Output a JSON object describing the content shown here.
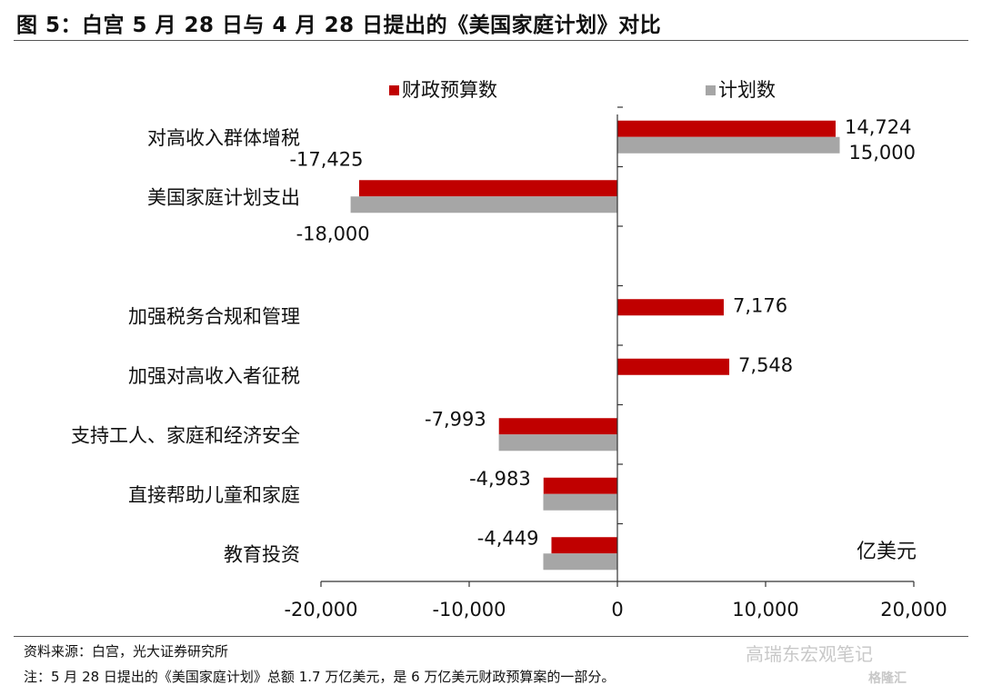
{
  "title": "图 5：白宫 5 月 28 日与 4 月 28 日提出的《美国家庭计划》对比",
  "source": "资料来源：白宫，光大证券研究所",
  "note": "注：5 月 28 日提出的《美国家庭计划》总额 1.7 万亿美元，是 6 万亿美元财政预算案的一部分。",
  "watermark": "高瑞东宏观笔记",
  "watermark2": "格隆汇",
  "colors": {
    "budget": "#c00000",
    "plan": "#a6a6a6"
  },
  "chart_data": {
    "type": "bar",
    "orientation": "horizontal",
    "categories": [
      "对高收入群体增税",
      "美国家庭计划支出",
      "",
      "加强税务合规和管理",
      "加强对高收入者征税",
      "支持工人、家庭和经济安全",
      "直接帮助儿童和家庭",
      "教育投资"
    ],
    "series": [
      {
        "name": "财政预算数",
        "values": [
          14724,
          -17425,
          null,
          7176,
          7548,
          -7993,
          -4983,
          -4449
        ],
        "labels": [
          "14,724",
          "-17,425",
          "",
          "7,176",
          "7,548",
          "-7,993",
          "-4,983",
          "-4,449"
        ]
      },
      {
        "name": "计划数",
        "values": [
          15000,
          -18000,
          null,
          null,
          null,
          -8000,
          -5000,
          -5000
        ],
        "labels": [
          "15,000",
          "-18,000",
          "",
          "",
          "",
          "",
          "",
          ""
        ]
      }
    ],
    "xlim": [
      -20000,
      20000
    ],
    "xticks": [
      -20000,
      -10000,
      0,
      10000,
      20000
    ],
    "xtick_labels": [
      "-20,000",
      "-10,000",
      "0",
      "10,000",
      "20,000"
    ],
    "unit_label": "亿美元",
    "legend": "top",
    "grid": false
  }
}
